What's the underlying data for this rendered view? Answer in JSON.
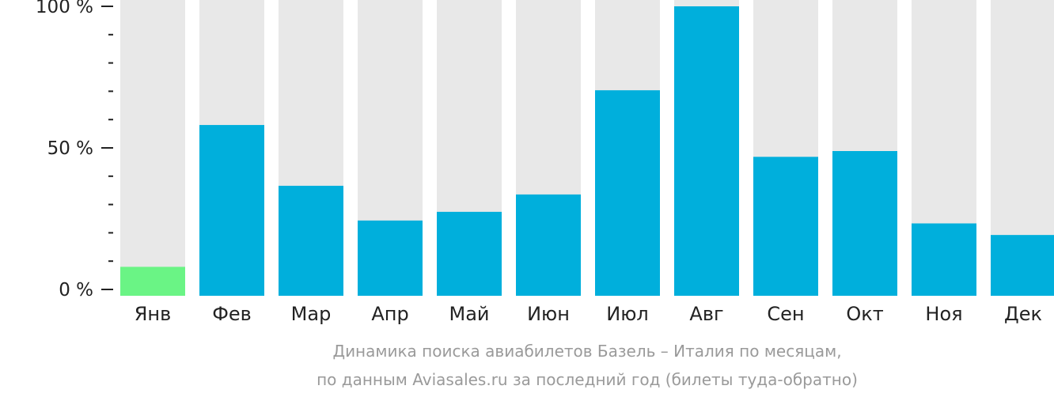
{
  "chart_data": {
    "type": "bar",
    "categories": [
      "Янв",
      "Фев",
      "Мар",
      "Апр",
      "Май",
      "Июн",
      "Июл",
      "Авг",
      "Сен",
      "Окт",
      "Ноя",
      "Дек"
    ],
    "values": [
      10,
      59,
      38,
      26,
      29,
      35,
      71,
      100,
      48,
      50,
      25,
      21
    ],
    "ylim": [
      0,
      100
    ],
    "y_ticks": [
      "0 %",
      "50 %",
      "100 %"
    ],
    "title": "Динамика поиска авиабилетов Базель – Италия по месяцам,",
    "subtitle": "по данным Aviasales.ru за последний год (билеты туда-обратно)",
    "highlight_index": 0,
    "colors": {
      "bar": "#00afdc",
      "bar_highlight": "#6af485",
      "bar_background": "#e8e8e8",
      "axis": "#222222",
      "caption": "#9a9a9a"
    }
  }
}
